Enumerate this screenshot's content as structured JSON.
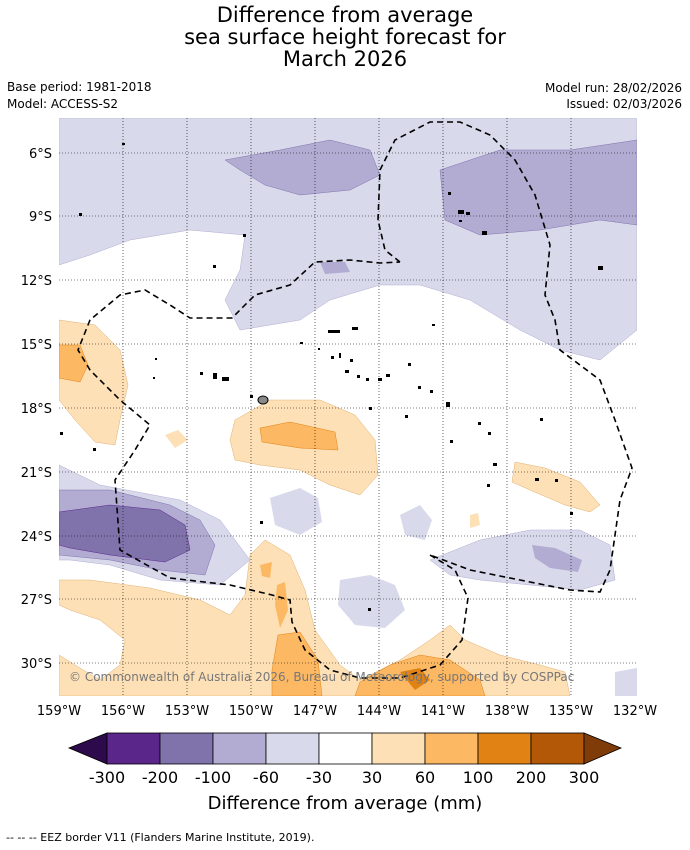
{
  "title": {
    "line1": "Difference from average",
    "line2": "sea surface height forecast for",
    "line3": "March 2026"
  },
  "meta": {
    "base_period": "Base period: 1981-2018",
    "model": "Model: ACCESS-S2",
    "model_run": "Model run: 28/02/2026",
    "issued": "Issued: 02/03/2026"
  },
  "map": {
    "lat_labels": [
      "6°S",
      "9°S",
      "12°S",
      "15°S",
      "18°S",
      "21°S",
      "24°S",
      "27°S",
      "30°S"
    ],
    "lon_labels": [
      "159°W",
      "156°W",
      "153°W",
      "150°W",
      "147°W",
      "144°W",
      "141°W",
      "138°W",
      "135°W",
      "132°W"
    ],
    "copyright": "© Commonwealth of Australia 2026, Bureau of Meteorology, supported by COSPPac"
  },
  "colorbar": {
    "ticks": [
      "-300",
      "-200",
      "-100",
      "-60",
      "-30",
      "30",
      "60",
      "100",
      "200",
      "300"
    ],
    "label": "Difference from average (mm)",
    "colors": {
      "lt_m300": "#2d0a4b",
      "m300_m200": "#5a2689",
      "m200_m100": "#8073ac",
      "m100_m60": "#b2abd2",
      "m60_m30": "#d8daeb",
      "m30_30": "#ffffff",
      "p30_60": "#fee0b6",
      "p60_100": "#fdb863",
      "p100_200": "#e08214",
      "p200_300": "#b35806",
      "gt_300": "#7f3b08"
    }
  },
  "footnote": "-- -- -- EEZ border V11 (Flanders Marine Institute, 2019)."
}
